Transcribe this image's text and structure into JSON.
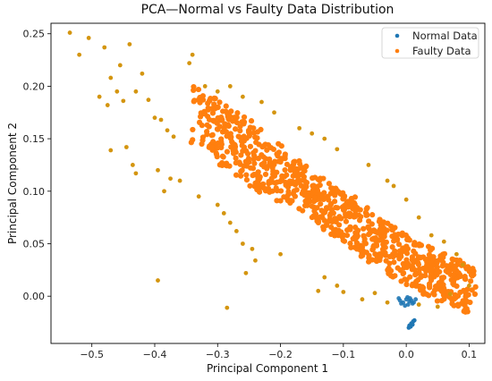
{
  "chart_data": {
    "type": "scatter",
    "title": "PCA—Normal vs Faulty Data Distribution",
    "xlabel": "Principal Component 1",
    "ylabel": "Principal Component 2",
    "xlim": [
      -0.565,
      0.125
    ],
    "ylim": [
      -0.045,
      0.26
    ],
    "xticks": [
      -0.5,
      -0.4,
      -0.3,
      -0.2,
      -0.1,
      0.0,
      0.1
    ],
    "xtick_labels": [
      "−0.5",
      "−0.4",
      "−0.3",
      "−0.2",
      "−0.1",
      "0.0",
      "0.1"
    ],
    "yticks": [
      0.0,
      0.05,
      0.1,
      0.15,
      0.2,
      0.25
    ],
    "ytick_labels": [
      "0.00",
      "0.05",
      "0.10",
      "0.15",
      "0.20",
      "0.25"
    ],
    "grid": false,
    "legend_position": "top-right",
    "series": [
      {
        "name": "Normal Data",
        "color": "#1f77b4",
        "points": [
          [
            -0.01,
            -0.004
          ],
          [
            -0.005,
            -0.006
          ],
          [
            0.0,
            -0.003
          ],
          [
            0.005,
            -0.005
          ],
          [
            0.01,
            -0.007
          ],
          [
            -0.012,
            -0.002
          ],
          [
            0.003,
            -0.008
          ],
          [
            0.008,
            -0.004
          ],
          [
            0.012,
            -0.006
          ],
          [
            -0.002,
            -0.009
          ],
          [
            0.006,
            -0.002
          ],
          [
            -0.008,
            -0.007
          ],
          [
            0.015,
            -0.003
          ],
          [
            0.002,
            -0.001
          ],
          [
            0.005,
            -0.028
          ],
          [
            0.008,
            -0.026
          ],
          [
            0.011,
            -0.024
          ],
          [
            0.013,
            -0.023
          ],
          [
            0.007,
            -0.029
          ],
          [
            0.01,
            -0.027
          ],
          [
            0.004,
            -0.03
          ]
        ]
      },
      {
        "name": "Faulty Data",
        "color": "#ff7f0e",
        "points": [
          [
            -0.535,
            0.251
          ],
          [
            -0.505,
            0.246
          ],
          [
            -0.52,
            0.23
          ],
          [
            -0.48,
            0.237
          ],
          [
            -0.44,
            0.24
          ],
          [
            -0.455,
            0.22
          ],
          [
            -0.47,
            0.208
          ],
          [
            -0.46,
            0.195
          ],
          [
            -0.488,
            0.19
          ],
          [
            -0.475,
            0.182
          ],
          [
            -0.42,
            0.212
          ],
          [
            -0.43,
            0.195
          ],
          [
            -0.45,
            0.186
          ],
          [
            -0.41,
            0.187
          ],
          [
            -0.4,
            0.17
          ],
          [
            -0.39,
            0.168
          ],
          [
            -0.38,
            0.158
          ],
          [
            -0.37,
            0.152
          ],
          [
            -0.345,
            0.222
          ],
          [
            -0.34,
            0.23
          ],
          [
            -0.47,
            0.139
          ],
          [
            -0.445,
            0.142
          ],
          [
            -0.435,
            0.125
          ],
          [
            -0.43,
            0.117
          ],
          [
            -0.395,
            0.12
          ],
          [
            -0.385,
            0.1
          ],
          [
            -0.375,
            0.112
          ],
          [
            -0.36,
            0.11
          ],
          [
            -0.33,
            0.095
          ],
          [
            -0.3,
            0.087
          ],
          [
            -0.29,
            0.079
          ],
          [
            -0.28,
            0.07
          ],
          [
            -0.27,
            0.062
          ],
          [
            -0.26,
            0.05
          ],
          [
            -0.245,
            0.045
          ],
          [
            -0.24,
            0.034
          ],
          [
            -0.255,
            0.022
          ],
          [
            -0.395,
            0.015
          ],
          [
            -0.285,
            -0.011
          ],
          [
            -0.2,
            0.04
          ],
          [
            -0.32,
            0.2
          ],
          [
            -0.3,
            0.195
          ],
          [
            -0.28,
            0.2
          ],
          [
            -0.26,
            0.19
          ],
          [
            -0.23,
            0.185
          ],
          [
            -0.21,
            0.175
          ],
          [
            -0.17,
            0.16
          ],
          [
            -0.15,
            0.155
          ],
          [
            -0.13,
            0.15
          ],
          [
            -0.11,
            0.14
          ],
          [
            -0.06,
            0.125
          ],
          [
            -0.03,
            0.11
          ],
          [
            -0.02,
            0.105
          ],
          [
            0.0,
            0.092
          ],
          [
            0.02,
            0.075
          ],
          [
            0.04,
            0.058
          ],
          [
            0.06,
            0.052
          ],
          [
            0.08,
            0.04
          ],
          [
            0.09,
            0.03
          ],
          [
            0.1,
            0.01
          ],
          [
            -0.14,
            0.005
          ],
          [
            -0.13,
            0.018
          ],
          [
            -0.11,
            0.01
          ],
          [
            -0.1,
            0.004
          ],
          [
            -0.07,
            -0.003
          ],
          [
            -0.05,
            0.003
          ],
          [
            -0.03,
            -0.006
          ],
          [
            0.02,
            -0.008
          ],
          [
            0.05,
            -0.01
          ],
          [
            0.07,
            0.002
          ]
        ],
        "cloud": [
          [
            -0.32,
            0.165
          ],
          [
            -0.3,
            0.158
          ],
          [
            -0.28,
            0.15
          ],
          [
            -0.26,
            0.142
          ],
          [
            -0.24,
            0.132
          ],
          [
            -0.22,
            0.125
          ],
          [
            -0.2,
            0.115
          ],
          [
            -0.18,
            0.108
          ],
          [
            -0.16,
            0.1
          ],
          [
            -0.14,
            0.092
          ],
          [
            -0.12,
            0.084
          ],
          [
            -0.1,
            0.076
          ],
          [
            -0.08,
            0.066
          ],
          [
            -0.06,
            0.058
          ],
          [
            -0.04,
            0.05
          ],
          [
            -0.02,
            0.042
          ],
          [
            0.0,
            0.034
          ],
          [
            0.02,
            0.028
          ],
          [
            0.04,
            0.022
          ],
          [
            0.06,
            0.016
          ],
          [
            0.08,
            0.012
          ],
          [
            0.09,
            0.01
          ]
        ]
      }
    ]
  }
}
